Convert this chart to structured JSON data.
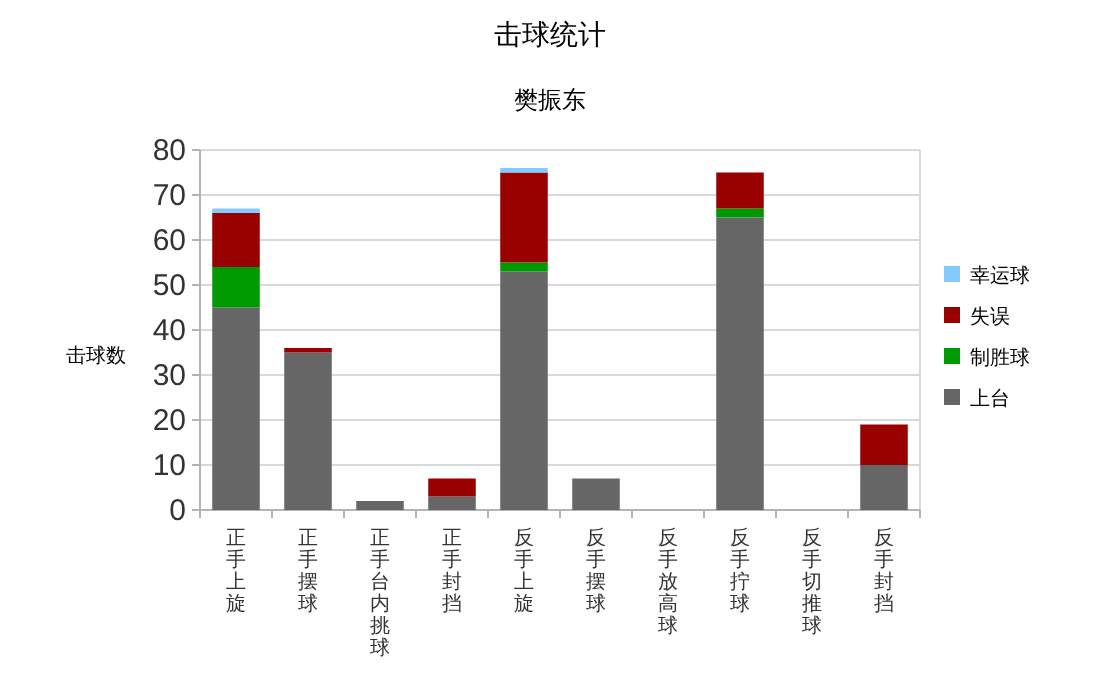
{
  "chart_data": {
    "type": "bar",
    "title": "击球统计",
    "subtitle": "樊振东",
    "ylabel": "击球数",
    "stacked": true,
    "categories": [
      "正手上旋",
      "正手摆球",
      "正手台内挑球",
      "正手封挡",
      "反手上旋",
      "反手摆球",
      "反手放高球",
      "反手拧球",
      "反手切推球",
      "反手封挡"
    ],
    "series": [
      {
        "name": "上台",
        "color": "#666666",
        "values": [
          45,
          35,
          2,
          3,
          53,
          7,
          0,
          65,
          0,
          10
        ]
      },
      {
        "name": "制胜球",
        "color": "#009900",
        "values": [
          9,
          0,
          0,
          0,
          2,
          0,
          0,
          2,
          0,
          0
        ]
      },
      {
        "name": "失误",
        "color": "#990000",
        "values": [
          12,
          1,
          0,
          4,
          20,
          0,
          0,
          8,
          0,
          9
        ]
      },
      {
        "name": "幸运球",
        "color": "#83caff",
        "values": [
          1,
          0,
          0,
          0,
          1,
          0,
          0,
          0,
          0,
          0
        ]
      }
    ],
    "ylim": [
      0,
      80
    ],
    "yticks": [
      0,
      10,
      20,
      30,
      40,
      50,
      60,
      70,
      80
    ],
    "grid": "y",
    "legend": "right"
  }
}
